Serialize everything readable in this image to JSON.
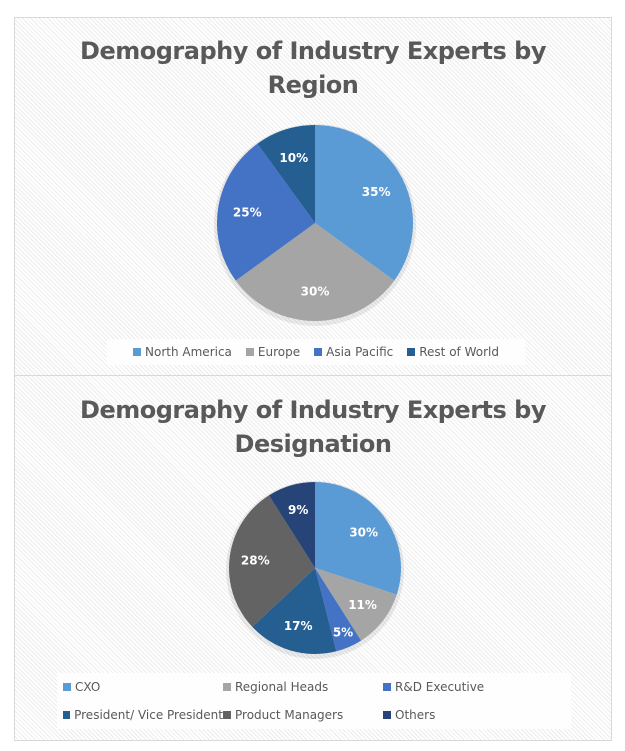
{
  "chart_data": [
    {
      "type": "pie",
      "title": "Demography of Industry Experts by Region",
      "title_lines": [
        "Demography of Industry Experts by",
        "Region"
      ],
      "categories": [
        "North America",
        "Europe",
        "Asia Pacific",
        "Rest of World"
      ],
      "values": [
        35,
        30,
        25,
        10
      ],
      "labels": [
        "35%",
        "30%",
        "25%",
        "10%"
      ],
      "colors": [
        "#5B9BD5",
        "#A5A5A5",
        "#4472C4",
        "#255E91"
      ],
      "legend_position": "bottom",
      "start_angle_deg": 0,
      "direction": "clockwise"
    },
    {
      "type": "pie",
      "title": "Demography of Industry Experts by Designation",
      "title_lines": [
        "Demography of Industry Experts by",
        "Designation"
      ],
      "categories": [
        "CXO",
        "Regional Heads",
        "R&D Executive",
        "President/ Vice President",
        "Product Managers",
        "Others"
      ],
      "values": [
        30,
        11,
        5,
        17,
        28,
        9
      ],
      "labels": [
        "30%",
        "11%",
        "5%",
        "17%",
        "28%",
        "9%"
      ],
      "colors": [
        "#5B9BD5",
        "#A5A5A5",
        "#4472C4",
        "#255E91",
        "#636363",
        "#264478"
      ],
      "legend_position": "bottom",
      "start_angle_deg": 0,
      "direction": "clockwise"
    }
  ],
  "charts": {
    "region": {
      "title_line1": "Demography of Industry Experts by",
      "title_line2": "Region",
      "legend": [
        {
          "label": "North America",
          "color": "#5B9BD5"
        },
        {
          "label": "Europe",
          "color": "#A5A5A5"
        },
        {
          "label": "Asia Pacific",
          "color": "#4472C4"
        },
        {
          "label": "Rest of World",
          "color": "#255E91"
        }
      ]
    },
    "designation": {
      "title_line1": "Demography of Industry Experts by",
      "title_line2": "Designation",
      "legend": [
        {
          "label": "CXO",
          "color": "#5B9BD5"
        },
        {
          "label": "Regional Heads",
          "color": "#A5A5A5"
        },
        {
          "label": "R&D Executive",
          "color": "#4472C4"
        },
        {
          "label": "President/ Vice President",
          "color": "#255E91"
        },
        {
          "label": "Product Managers",
          "color": "#636363"
        },
        {
          "label": "Others",
          "color": "#264478"
        }
      ]
    }
  }
}
